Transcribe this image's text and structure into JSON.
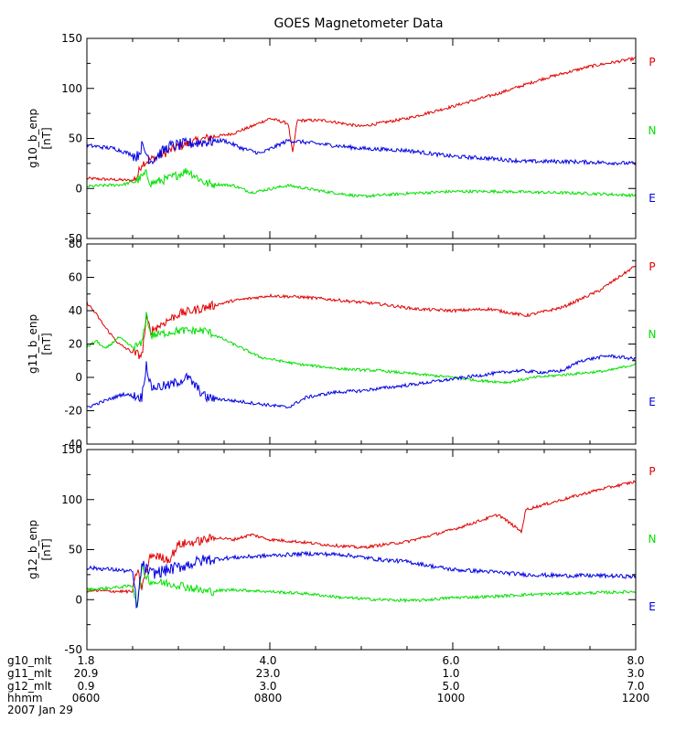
{
  "chart_data": {
    "type": "line",
    "title": "GOES Magnetometer Data",
    "x_range_hours": [
      6,
      12
    ],
    "x_tick_hours": [
      6,
      8,
      10,
      12
    ],
    "x_minor_step_hours": 0.5,
    "colors": {
      "P": "#e00000",
      "N": "#00e000",
      "E": "#0000e0"
    },
    "legend": [
      "P",
      "N",
      "E"
    ],
    "panels": [
      {
        "ylabel": "g10_b_enp",
        "yunit": "[nT]",
        "ylim": [
          -50,
          150
        ],
        "yticks": [
          -50,
          0,
          50,
          100,
          150
        ],
        "series": [
          {
            "name": "P",
            "noise": 1.5,
            "points": [
              [
                6.0,
                10
              ],
              [
                6.5,
                8
              ],
              [
                6.55,
                12
              ],
              [
                6.6,
                25
              ],
              [
                6.8,
                33
              ],
              [
                7.0,
                42
              ],
              [
                7.3,
                50
              ],
              [
                7.6,
                55
              ],
              [
                7.8,
                62
              ],
              [
                8.0,
                70
              ],
              [
                8.2,
                65
              ],
              [
                8.25,
                35
              ],
              [
                8.3,
                68
              ],
              [
                8.6,
                68
              ],
              [
                9.0,
                62
              ],
              [
                9.5,
                70
              ],
              [
                10.0,
                82
              ],
              [
                10.5,
                95
              ],
              [
                11.0,
                110
              ],
              [
                11.5,
                122
              ],
              [
                12.0,
                130
              ]
            ]
          },
          {
            "name": "N",
            "noise": 1.5,
            "points": [
              [
                6.0,
                2
              ],
              [
                6.4,
                4
              ],
              [
                6.55,
                8
              ],
              [
                6.65,
                15
              ],
              [
                6.7,
                5
              ],
              [
                6.9,
                10
              ],
              [
                7.1,
                18
              ],
              [
                7.3,
                5
              ],
              [
                7.6,
                3
              ],
              [
                7.8,
                -4
              ],
              [
                8.2,
                3
              ],
              [
                8.6,
                -3
              ],
              [
                9.0,
                -8
              ],
              [
                9.5,
                -5
              ],
              [
                10.0,
                -3
              ],
              [
                10.5,
                -3
              ],
              [
                11.0,
                -4
              ],
              [
                11.5,
                -5
              ],
              [
                12.0,
                -7
              ]
            ]
          },
          {
            "name": "E",
            "noise": 2.0,
            "points": [
              [
                6.0,
                43
              ],
              [
                6.3,
                40
              ],
              [
                6.55,
                32
              ],
              [
                6.6,
                42
              ],
              [
                6.7,
                28
              ],
              [
                6.9,
                42
              ],
              [
                7.2,
                46
              ],
              [
                7.5,
                48
              ],
              [
                7.7,
                40
              ],
              [
                7.9,
                35
              ],
              [
                8.2,
                48
              ],
              [
                8.5,
                45
              ],
              [
                9.0,
                40
              ],
              [
                9.5,
                38
              ],
              [
                10.0,
                32
              ],
              [
                10.4,
                30
              ],
              [
                10.8,
                27
              ],
              [
                11.2,
                27
              ],
              [
                11.6,
                26
              ],
              [
                12.0,
                25
              ]
            ]
          }
        ]
      },
      {
        "ylabel": "g11_b_enp",
        "yunit": "[nT]",
        "ylim": [
          -40,
          80
        ],
        "yticks": [
          -40,
          -20,
          0,
          20,
          40,
          60,
          80
        ],
        "series": [
          {
            "name": "P",
            "noise": 0.9,
            "points": [
              [
                6.0,
                45
              ],
              [
                6.1,
                38
              ],
              [
                6.2,
                30
              ],
              [
                6.35,
                20
              ],
              [
                6.5,
                15
              ],
              [
                6.6,
                13
              ],
              [
                6.65,
                35
              ],
              [
                6.7,
                28
              ],
              [
                7.0,
                38
              ],
              [
                7.3,
                42
              ],
              [
                7.6,
                46
              ],
              [
                8.0,
                49
              ],
              [
                8.4,
                48
              ],
              [
                8.8,
                46
              ],
              [
                9.2,
                44
              ],
              [
                9.6,
                41
              ],
              [
                10.0,
                40
              ],
              [
                10.4,
                41
              ],
              [
                10.8,
                37
              ],
              [
                11.2,
                42
              ],
              [
                11.6,
                52
              ],
              [
                12.0,
                67
              ]
            ]
          },
          {
            "name": "N",
            "noise": 0.8,
            "points": [
              [
                6.0,
                18
              ],
              [
                6.1,
                22
              ],
              [
                6.2,
                17
              ],
              [
                6.35,
                24
              ],
              [
                6.5,
                18
              ],
              [
                6.6,
                20
              ],
              [
                6.65,
                38
              ],
              [
                6.7,
                25
              ],
              [
                7.0,
                28
              ],
              [
                7.3,
                28
              ],
              [
                7.6,
                20
              ],
              [
                7.9,
                12
              ],
              [
                8.3,
                8
              ],
              [
                8.8,
                5
              ],
              [
                9.2,
                4
              ],
              [
                9.6,
                2
              ],
              [
                10.0,
                0
              ],
              [
                10.3,
                -2
              ],
              [
                10.6,
                -3
              ],
              [
                10.9,
                0
              ],
              [
                11.3,
                2
              ],
              [
                11.7,
                4
              ],
              [
                12.0,
                8
              ]
            ]
          },
          {
            "name": "E",
            "noise": 1.0,
            "points": [
              [
                6.0,
                -18
              ],
              [
                6.2,
                -14
              ],
              [
                6.4,
                -10
              ],
              [
                6.6,
                -12
              ],
              [
                6.65,
                8
              ],
              [
                6.7,
                -6
              ],
              [
                6.9,
                -5
              ],
              [
                7.1,
                0
              ],
              [
                7.3,
                -12
              ],
              [
                7.6,
                -14
              ],
              [
                7.9,
                -16
              ],
              [
                8.2,
                -18
              ],
              [
                8.4,
                -12
              ],
              [
                8.7,
                -9
              ],
              [
                9.0,
                -8
              ],
              [
                9.3,
                -6
              ],
              [
                9.6,
                -4
              ],
              [
                10.0,
                -1
              ],
              [
                10.4,
                2
              ],
              [
                10.7,
                4
              ],
              [
                11.0,
                3
              ],
              [
                11.2,
                4
              ],
              [
                11.4,
                10
              ],
              [
                11.7,
                13
              ],
              [
                12.0,
                11
              ]
            ]
          }
        ]
      },
      {
        "ylabel": "g12_b_enp",
        "yunit": "[nT]",
        "ylim": [
          -50,
          150
        ],
        "yticks": [
          -50,
          0,
          50,
          100,
          150
        ],
        "series": [
          {
            "name": "P",
            "noise": 1.5,
            "points": [
              [
                6.0,
                9
              ],
              [
                6.5,
                8
              ],
              [
                6.55,
                30
              ],
              [
                6.6,
                12
              ],
              [
                6.7,
                45
              ],
              [
                6.9,
                40
              ],
              [
                7.0,
                55
              ],
              [
                7.2,
                58
              ],
              [
                7.4,
                62
              ],
              [
                7.6,
                60
              ],
              [
                7.8,
                65
              ],
              [
                8.0,
                60
              ],
              [
                8.3,
                58
              ],
              [
                8.6,
                55
              ],
              [
                9.0,
                52
              ],
              [
                9.5,
                58
              ],
              [
                10.0,
                70
              ],
              [
                10.5,
                85
              ],
              [
                10.75,
                68
              ],
              [
                10.8,
                90
              ],
              [
                11.2,
                100
              ],
              [
                11.6,
                110
              ],
              [
                12.0,
                118
              ]
            ]
          },
          {
            "name": "N",
            "noise": 1.5,
            "points": [
              [
                6.0,
                10
              ],
              [
                6.3,
                12
              ],
              [
                6.5,
                14
              ],
              [
                6.55,
                -5
              ],
              [
                6.6,
                30
              ],
              [
                6.7,
                18
              ],
              [
                7.0,
                15
              ],
              [
                7.3,
                8
              ],
              [
                7.6,
                10
              ],
              [
                8.0,
                8
              ],
              [
                8.4,
                6
              ],
              [
                8.8,
                2
              ],
              [
                9.2,
                0
              ],
              [
                9.6,
                -1
              ],
              [
                10.0,
                2
              ],
              [
                10.4,
                3
              ],
              [
                10.8,
                5
              ],
              [
                11.2,
                6
              ],
              [
                11.6,
                7
              ],
              [
                12.0,
                8
              ]
            ]
          },
          {
            "name": "E",
            "noise": 2.0,
            "points": [
              [
                6.0,
                32
              ],
              [
                6.3,
                30
              ],
              [
                6.5,
                28
              ],
              [
                6.55,
                -10
              ],
              [
                6.6,
                35
              ],
              [
                6.7,
                26
              ],
              [
                6.9,
                30
              ],
              [
                7.1,
                35
              ],
              [
                7.3,
                40
              ],
              [
                7.6,
                42
              ],
              [
                8.0,
                44
              ],
              [
                8.4,
                46
              ],
              [
                8.8,
                45
              ],
              [
                9.2,
                40
              ],
              [
                9.5,
                38
              ],
              [
                9.8,
                33
              ],
              [
                10.0,
                30
              ],
              [
                10.4,
                28
              ],
              [
                10.8,
                25
              ],
              [
                11.2,
                24
              ],
              [
                11.6,
                24
              ],
              [
                12.0,
                23
              ]
            ]
          }
        ]
      }
    ],
    "footer": {
      "rows": [
        {
          "label": "g10_mlt",
          "values": [
            "1.8",
            "4.0",
            "6.0",
            "8.0"
          ]
        },
        {
          "label": "g11_mlt",
          "values": [
            "20.9",
            "23.0",
            "1.0",
            "3.0"
          ]
        },
        {
          "label": "g12_mlt",
          "values": [
            "0.9",
            "3.0",
            "5.0",
            "7.0"
          ]
        },
        {
          "label": "hhmm",
          "values": [
            "0600",
            "0800",
            "1000",
            "1200"
          ]
        }
      ],
      "date": "2007 Jan 29"
    }
  }
}
